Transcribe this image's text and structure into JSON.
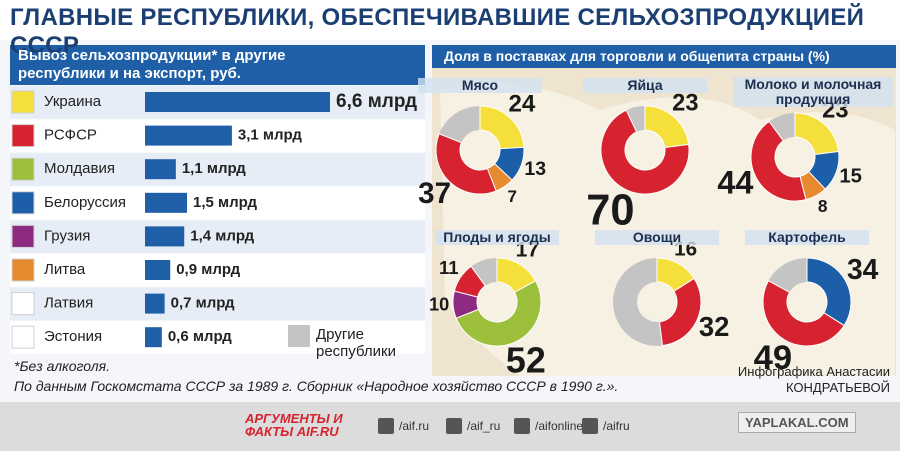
{
  "header": {
    "title": "ГЛАВНЫЕ РЕСПУБЛИКИ, ОБЕСПЕЧИВАВШИЕ СЕЛЬХОЗПРОДУКЦИЕЙ СССР"
  },
  "share_header": "Доля в поставках для торговли и общепита страны (%)",
  "chart_data": [
    {
      "type": "bar",
      "orientation": "horizontal",
      "title": "Вывоз сельхозпродукции* в другие республики и на экспорт, руб.",
      "categories": [
        "Украина",
        "РСФСР",
        "Молдавия",
        "Белоруссия",
        "Грузия",
        "Литва",
        "Латвия",
        "Эстония"
      ],
      "colors": [
        "#f5df3a",
        "#d7232f",
        "#9cbf3c",
        "#1c5ea8",
        "#8e2a7f",
        "#e7892d",
        "#ffffff",
        "#ffffff"
      ],
      "values": [
        6.6,
        3.1,
        1.1,
        1.5,
        1.4,
        0.9,
        0.7,
        0.6
      ],
      "value_labels": [
        "6,6 млрд",
        "3,1 млрд",
        "1,1 млрд",
        "1,5 млрд",
        "1,4 млрд",
        "0,9 млрд",
        "0,7 млрд",
        "0,6 млрд"
      ],
      "color": "#1f5fa8",
      "other": {
        "name": "Другие республики",
        "color": "#c4c4c4"
      }
    },
    {
      "type": "donut",
      "title": "Мясо",
      "values": [
        24,
        13,
        7,
        37
      ],
      "colors": [
        "#f5df3a",
        "#1c5ea8",
        "#e7892d",
        "#d7232f"
      ]
    },
    {
      "type": "donut",
      "title": "Яйца",
      "values": [
        23,
        70
      ],
      "colors": [
        "#f5df3a",
        "#d7232f"
      ]
    },
    {
      "type": "donut",
      "title": "Молоко и молочная продукция",
      "values": [
        23,
        15,
        8,
        44
      ],
      "colors": [
        "#f5df3a",
        "#1c5ea8",
        "#e7892d",
        "#d7232f"
      ]
    },
    {
      "type": "donut",
      "title": "Плоды и ягоды",
      "values": [
        17,
        52,
        10,
        11
      ],
      "colors": [
        "#f5df3a",
        "#9cbf3c",
        "#8e2a7f",
        "#d7232f"
      ]
    },
    {
      "type": "donut",
      "title": "Овощи",
      "values": [
        16,
        32
      ],
      "colors": [
        "#f5df3a",
        "#d7232f"
      ]
    },
    {
      "type": "donut",
      "title": "Картофель",
      "values": [
        34,
        49
      ],
      "colors": [
        "#1c5ea8",
        "#d7232f"
      ]
    }
  ],
  "footer": {
    "note": "*Без алкоголя.",
    "source": "По данным Госкомстата СССР за 1989 г. Сборник «Народное хозяйство СССР в 1990 г.».",
    "credit": "Инфографика Анастасии КОНДРАТЬЕВОЙ"
  },
  "bottom_bar": {
    "logo": "АРГУМЕНТЫ И ФАКТЫ AIF.RU",
    "social": [
      "/aif.ru",
      "/aif_ru",
      "/aifonline",
      "/aifru"
    ],
    "watermark": "YAPLAKAL.COM"
  }
}
